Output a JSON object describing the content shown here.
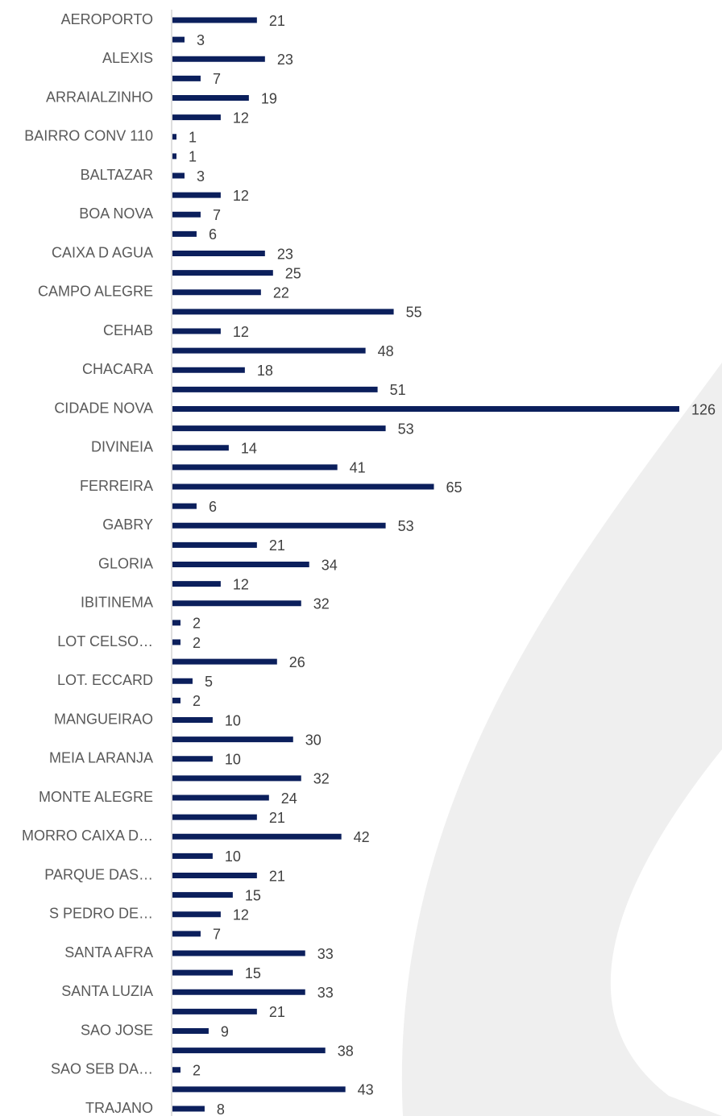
{
  "chart_data": {
    "type": "barh",
    "categories": [
      "AEROPORTO",
      null,
      "ALEXIS",
      null,
      "ARRAIALZINHO",
      null,
      "BAIRRO CONV 110",
      null,
      "BALTAZAR",
      null,
      "BOA NOVA",
      null,
      "CAIXA D AGUA",
      null,
      "CAMPO ALEGRE",
      null,
      "CEHAB",
      null,
      "CHACARA",
      null,
      "CIDADE NOVA",
      null,
      "DIVINEIA",
      null,
      "FERREIRA",
      null,
      "GABRY",
      null,
      "GLORIA",
      null,
      "IBITINEMA",
      null,
      "LOT CELSO…",
      null,
      "LOT. ECCARD",
      null,
      "MANGUEIRAO",
      null,
      "MEIA LARANJA",
      null,
      "MONTE ALEGRE",
      null,
      "MORRO CAIXA D…",
      null,
      "PARQUE DAS…",
      null,
      "S PEDRO DE…",
      null,
      "SANTA AFRA",
      null,
      "SANTA LUZIA",
      null,
      "SAO JOSE",
      null,
      "SAO SEB DA…",
      null,
      "TRAJANO"
    ],
    "values": [
      21,
      3,
      23,
      7,
      19,
      12,
      1,
      1,
      3,
      12,
      7,
      6,
      23,
      25,
      22,
      55,
      12,
      48,
      18,
      51,
      126,
      53,
      14,
      41,
      65,
      6,
      53,
      21,
      34,
      12,
      32,
      2,
      2,
      26,
      5,
      2,
      10,
      30,
      10,
      32,
      24,
      21,
      42,
      10,
      21,
      15,
      12,
      7,
      33,
      15,
      33,
      21,
      9,
      38,
      2,
      43,
      8
    ],
    "color": "#0b1f5c"
  }
}
